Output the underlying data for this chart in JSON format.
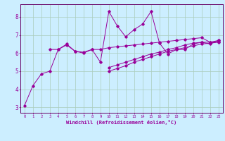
{
  "xlabel": "Windchill (Refroidissement éolien,°C)",
  "bg_color": "#cceeff",
  "grid_color": "#aaccbb",
  "line_color": "#990099",
  "spine_color": "#660066",
  "xlim": [
    -0.5,
    23.5
  ],
  "ylim": [
    2.7,
    8.7
  ],
  "xticks": [
    0,
    1,
    2,
    3,
    4,
    5,
    6,
    7,
    8,
    9,
    10,
    11,
    12,
    13,
    14,
    15,
    16,
    17,
    18,
    19,
    20,
    21,
    22,
    23
  ],
  "yticks": [
    3,
    4,
    5,
    6,
    7,
    8
  ],
  "series": [
    [
      3.1,
      4.2,
      4.85,
      5.0,
      6.2,
      6.5,
      6.1,
      6.0,
      6.2,
      5.5,
      8.3,
      7.5,
      6.9,
      7.3,
      7.6,
      8.3,
      6.55,
      5.95,
      6.2,
      6.2,
      6.5,
      6.6,
      6.5,
      6.7
    ],
    [
      null,
      null,
      null,
      6.2,
      6.2,
      6.45,
      6.1,
      6.05,
      6.2,
      6.2,
      6.3,
      6.35,
      6.4,
      6.45,
      6.5,
      6.55,
      6.6,
      6.65,
      6.7,
      6.75,
      6.8,
      6.85,
      6.6,
      6.7
    ],
    [
      null,
      null,
      null,
      null,
      null,
      null,
      null,
      null,
      null,
      null,
      5.0,
      5.15,
      5.3,
      5.5,
      5.65,
      5.8,
      5.95,
      6.1,
      6.2,
      6.3,
      6.4,
      6.5,
      6.55,
      6.6
    ],
    [
      null,
      null,
      null,
      null,
      null,
      null,
      null,
      null,
      null,
      null,
      5.2,
      5.35,
      5.5,
      5.65,
      5.8,
      5.95,
      6.05,
      6.2,
      6.3,
      6.45,
      6.55,
      6.6,
      6.6,
      6.65
    ]
  ]
}
